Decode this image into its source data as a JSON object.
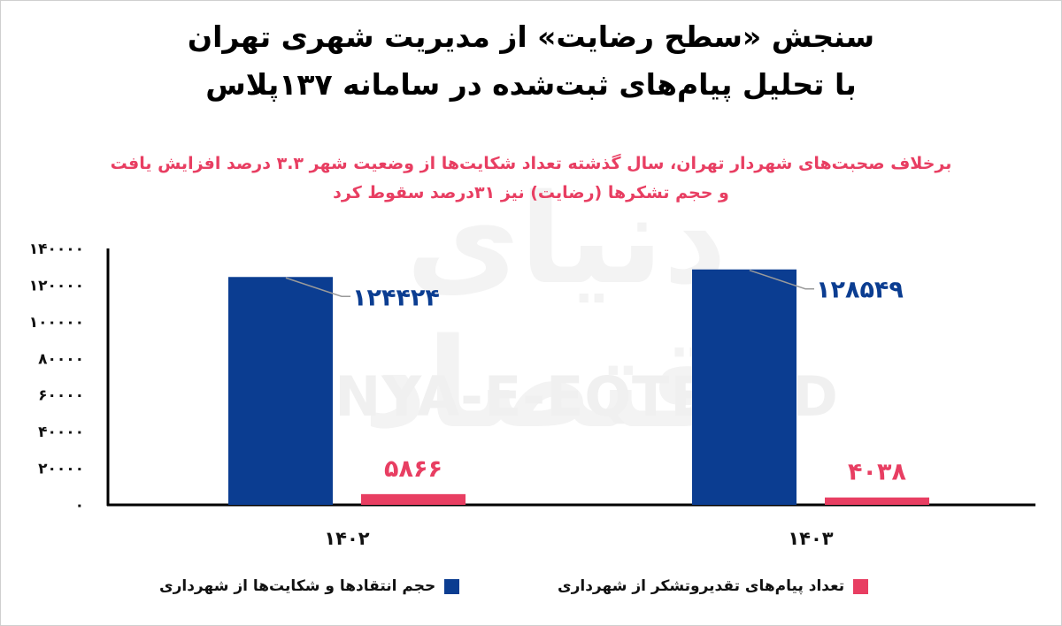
{
  "header": {
    "title_line1": "سنجش «سطح رضایت» از مدیریت شهری تهران",
    "title_line2": "با تحلیل پیام‌های ثبت‌شده در سامانه ۱۳۷پلاس",
    "subtitle_line1": "برخلاف صحبت‌های شهردار تهران، سال گذشته تعداد شکایت‌ها از وضعیت شهر ۳.۳ درصد افزایش یافت",
    "subtitle_line2": "و حجم تشکرها (رضایت) نیز ۳۱درصد سقوط کرد"
  },
  "watermark": {
    "text_en": "DONYA-E-EQTESAD",
    "text_fa": "دنیای اقتصاد"
  },
  "chart_data": {
    "type": "bar",
    "categories": [
      "۱۴۰۲",
      "۱۴۰۳"
    ],
    "series": [
      {
        "name": "حجم انتقادها و شکایت‌ها از شهرداری",
        "values": [
          124424,
          128549
        ],
        "labels": [
          "۱۲۴۴۲۴",
          "۱۲۸۵۴۹"
        ],
        "color": "#0b3d91"
      },
      {
        "name": "تعداد پیام‌های تقدیروتشکر از شهرداری",
        "values": [
          5866,
          4038
        ],
        "labels": [
          "۵۸۶۶",
          "۴۰۳۸"
        ],
        "color": "#e83e62"
      }
    ],
    "ylim": [
      0,
      140000
    ],
    "yticks": [
      0,
      20000,
      40000,
      60000,
      80000,
      100000,
      120000,
      140000
    ],
    "ytick_labels": [
      "۰",
      "۲۰۰۰۰",
      "۴۰۰۰۰",
      "۶۰۰۰۰",
      "۸۰۰۰۰",
      "۱۰۰۰۰۰",
      "۱۲۰۰۰۰",
      "۱۴۰۰۰۰"
    ],
    "grid": false,
    "legend_position": "bottom"
  }
}
